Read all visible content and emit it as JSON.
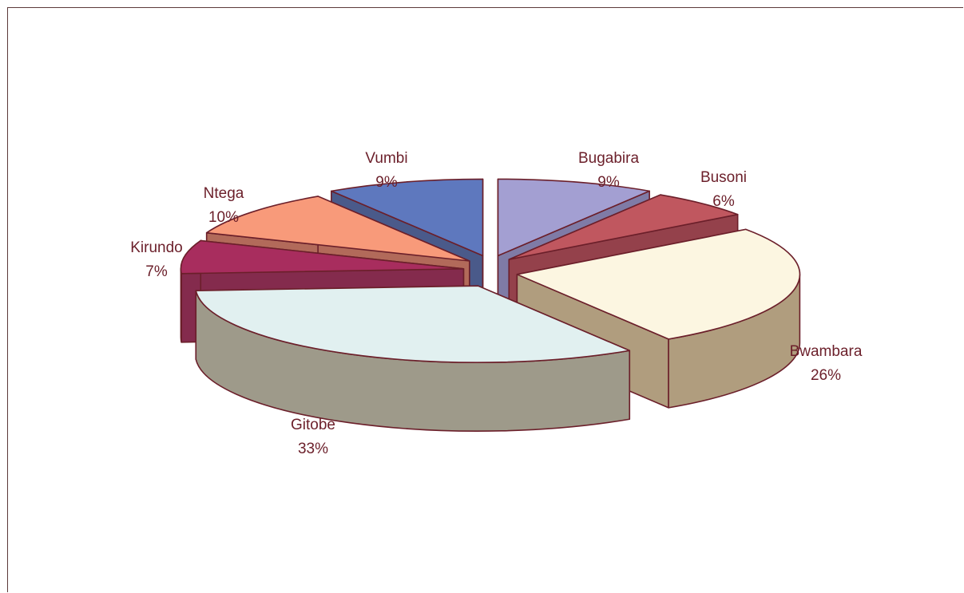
{
  "chart_data": {
    "type": "pie",
    "style": "3d-exploded",
    "slices": [
      {
        "label": "Bugabira",
        "value": 9,
        "value_label": "9%",
        "top_color": "#a39fd2",
        "side_color": "#7f7ba6"
      },
      {
        "label": "Busoni",
        "value": 6,
        "value_label": "6%",
        "top_color": "#c0575f",
        "side_color": "#94414b"
      },
      {
        "label": "Bwambara",
        "value": 26,
        "value_label": "26%",
        "top_color": "#fcf6e1",
        "side_color": "#b09d7e"
      },
      {
        "label": "Gitobe",
        "value": 33,
        "value_label": "33%",
        "top_color": "#e1f0f0",
        "side_color": "#9e9a8a"
      },
      {
        "label": "Kirundo",
        "value": 7,
        "value_label": "7%",
        "top_color": "#a82d5e",
        "side_color": "#842b4d"
      },
      {
        "label": "Ntega",
        "value": 10,
        "value_label": "10%",
        "top_color": "#f89a7a",
        "side_color": "#b26a5a"
      },
      {
        "label": "Vumbi",
        "value": 9,
        "value_label": "9%",
        "top_color": "#5e78be",
        "side_color": "#4a5a8a"
      }
    ],
    "edge_color": "#6b1f2a",
    "legend": "none"
  }
}
